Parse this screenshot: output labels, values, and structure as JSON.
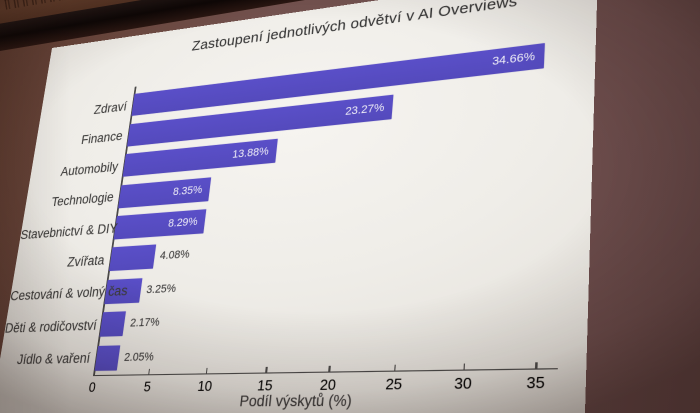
{
  "scene": {
    "screen_background": "#efede8",
    "wall_left_color": "#5e3a2a",
    "wall_right_color": "#6f504e",
    "shadow_band_color": "#0d0706"
  },
  "chart_data": {
    "type": "bar",
    "orientation": "horizontal",
    "title": "Zastoupení jednotlivých odvětví v AI Overviews",
    "xlabel": "Podíl výskytů (%)",
    "ylabel": "",
    "categories": [
      "Zdraví",
      "Finance",
      "Automobily",
      "Technologie",
      "Stavebnictví & DIY",
      "Zvířata",
      "Cestování & volný čas",
      "Děti & rodičovství",
      "Jídlo & vaření"
    ],
    "values": [
      34.66,
      23.27,
      13.88,
      8.35,
      8.29,
      4.08,
      3.25,
      2.17,
      2.05
    ],
    "value_labels": [
      "34.66%",
      "23.27%",
      "13.88%",
      "8.35%",
      "8.29%",
      "4.08%",
      "3.25%",
      "2.17%",
      "2.05%"
    ],
    "xticks": [
      0,
      5,
      10,
      15,
      20,
      25,
      30,
      35
    ],
    "xlim": [
      0,
      36.5
    ],
    "grid": false,
    "legend_position": "none",
    "bar_color": "#5a4fc8",
    "value_label_inside_color": "#f3f2f8",
    "value_label_outside_color": "#3a3939",
    "value_label_inside_threshold": 6
  }
}
